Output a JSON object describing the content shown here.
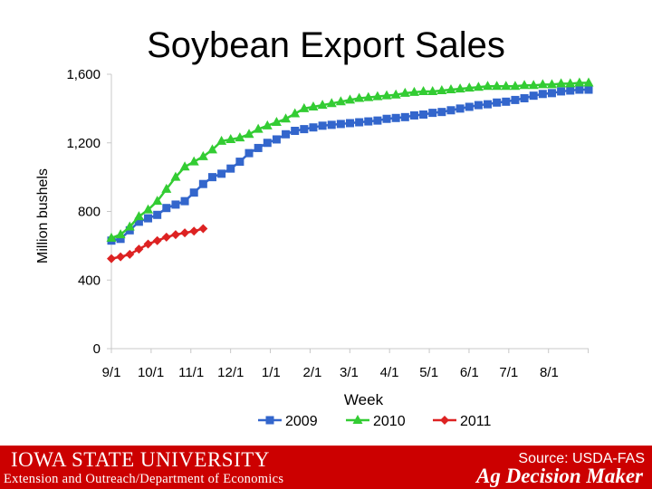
{
  "slide": {
    "title": "Soybean Export Sales"
  },
  "footer": {
    "university": "IOWA STATE UNIVERSITY",
    "department": "Extension and Outreach/Department of Economics",
    "source": "Source: USDA-FAS",
    "brand": "Ag Decision Maker",
    "background_color": "#cc0000"
  },
  "chart_data": {
    "type": "line",
    "title": "",
    "xlabel": "Week",
    "ylabel": "Million bushels",
    "ylim": [
      0,
      1600
    ],
    "xlim": [
      0,
      52
    ],
    "y_ticks": [
      0,
      400,
      800,
      1200,
      1600
    ],
    "y_tick_labels": [
      "0",
      "400",
      "800",
      "1,200",
      "1,600"
    ],
    "x_ticks": [
      {
        "week": 0,
        "label": "9/1"
      },
      {
        "week": 4.3,
        "label": "10/1"
      },
      {
        "week": 8.7,
        "label": "11/1"
      },
      {
        "week": 13,
        "label": "12/1"
      },
      {
        "week": 17.4,
        "label": "1/1"
      },
      {
        "week": 21.9,
        "label": "2/1"
      },
      {
        "week": 25.9,
        "label": "3/1"
      },
      {
        "week": 30.3,
        "label": "4/1"
      },
      {
        "week": 34.6,
        "label": "5/1"
      },
      {
        "week": 39,
        "label": "6/1"
      },
      {
        "week": 43.3,
        "label": "7/1"
      },
      {
        "week": 47.7,
        "label": "8/1"
      }
    ],
    "grid": false,
    "legend_position": "bottom",
    "series": [
      {
        "name": "2009",
        "color": "#3366cc",
        "marker": "square",
        "values": [
          630,
          640,
          690,
          740,
          760,
          780,
          820,
          840,
          860,
          910,
          960,
          1000,
          1020,
          1050,
          1090,
          1140,
          1170,
          1200,
          1220,
          1250,
          1270,
          1280,
          1290,
          1300,
          1305,
          1310,
          1315,
          1320,
          1325,
          1330,
          1340,
          1345,
          1350,
          1360,
          1365,
          1375,
          1380,
          1390,
          1400,
          1410,
          1420,
          1425,
          1435,
          1440,
          1450,
          1460,
          1475,
          1485,
          1490,
          1500,
          1505,
          1510,
          1510
        ]
      },
      {
        "name": "2010",
        "color": "#33cc33",
        "marker": "triangle",
        "values": [
          645,
          665,
          710,
          770,
          810,
          860,
          930,
          1000,
          1060,
          1090,
          1120,
          1160,
          1210,
          1220,
          1230,
          1250,
          1280,
          1300,
          1320,
          1340,
          1370,
          1400,
          1410,
          1420,
          1430,
          1440,
          1450,
          1460,
          1465,
          1470,
          1475,
          1480,
          1490,
          1495,
          1500,
          1500,
          1505,
          1510,
          1515,
          1520,
          1525,
          1530,
          1530,
          1530,
          1530,
          1535,
          1535,
          1540,
          1540,
          1545,
          1545,
          1550,
          1550
        ]
      },
      {
        "name": "2011",
        "color": "#dd2222",
        "marker": "diamond",
        "values": [
          525,
          535,
          550,
          580,
          610,
          630,
          650,
          665,
          675,
          685,
          700
        ]
      }
    ]
  }
}
